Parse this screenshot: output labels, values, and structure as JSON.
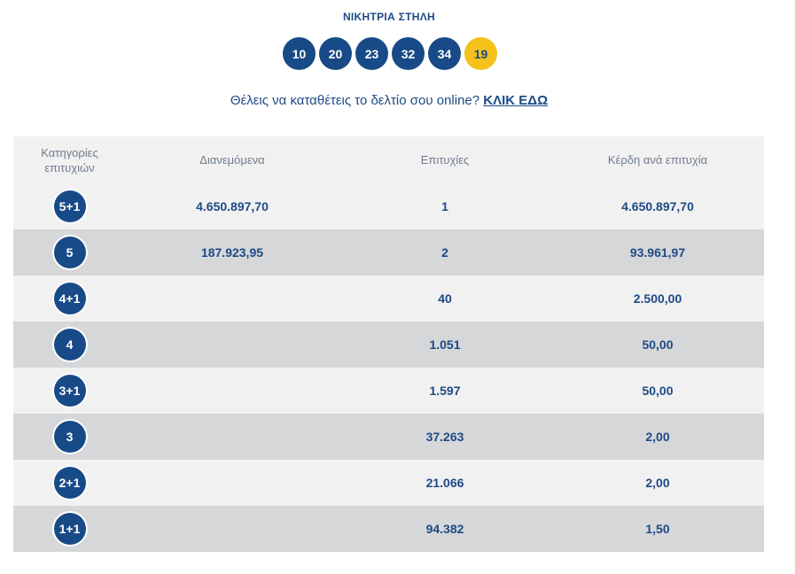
{
  "header": {
    "title": "ΝΙΚΗΤΡΙΑ ΣΤΗΛΗ",
    "numbers": [
      "10",
      "20",
      "23",
      "32",
      "34"
    ],
    "bonus": "19"
  },
  "promo": {
    "text": "Θέλεις να καταθέτεις το δελτίο σου online?",
    "link_label": "ΚΛΙΚ ΕΔΩ"
  },
  "table": {
    "columns": {
      "category_line1": "Κατηγορίες",
      "category_line2": "επιτυχιών",
      "distributed": "Διανεμόμενα",
      "winners": "Επιτυχίες",
      "prize": "Κέρδη ανά επιτυχία"
    },
    "rows": [
      {
        "category": "5+1",
        "distributed": "4.650.897,70",
        "winners": "1",
        "prize": "4.650.897,70"
      },
      {
        "category": "5",
        "distributed": "187.923,95",
        "winners": "2",
        "prize": "93.961,97"
      },
      {
        "category": "4+1",
        "distributed": "",
        "winners": "40",
        "prize": "2.500,00"
      },
      {
        "category": "4",
        "distributed": "",
        "winners": "1.051",
        "prize": "50,00"
      },
      {
        "category": "3+1",
        "distributed": "",
        "winners": "1.597",
        "prize": "50,00"
      },
      {
        "category": "3",
        "distributed": "",
        "winners": "37.263",
        "prize": "2,00"
      },
      {
        "category": "2+1",
        "distributed": "",
        "winners": "21.066",
        "prize": "2,00"
      },
      {
        "category": "1+1",
        "distributed": "",
        "winners": "94.382",
        "prize": "1,50"
      }
    ]
  },
  "colors": {
    "brand_blue": "#184a87",
    "bonus_yellow": "#f4c21a",
    "row_light": "#f1f1f1",
    "row_dark": "#d6d7d9"
  }
}
